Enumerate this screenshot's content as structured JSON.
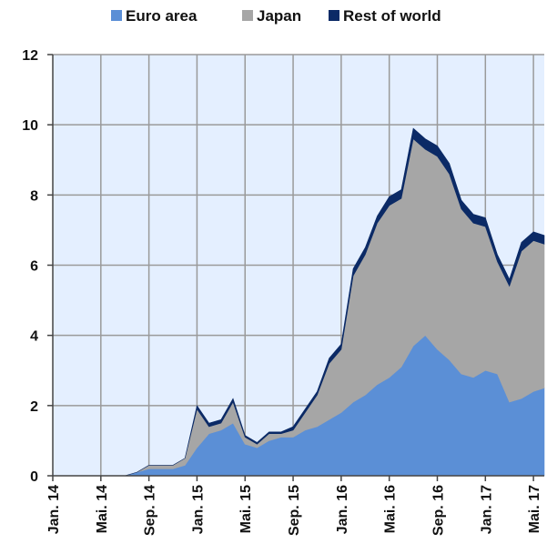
{
  "legend": {
    "items": [
      {
        "label": "Euro area",
        "color": "#5b8fd6"
      },
      {
        "label": "Japan",
        "color": "#a6a6a6"
      },
      {
        "label": "Rest of world",
        "color": "#0b2a66"
      }
    ]
  },
  "colors": {
    "plot_bg": "#e4efff",
    "grid": "#9a9a9a",
    "axis": "#444444"
  },
  "chart_data": {
    "type": "area",
    "stacked": true,
    "title": "",
    "xlabel": "",
    "ylabel": "",
    "ylim": [
      0,
      12
    ],
    "yticks": [
      0,
      2,
      4,
      6,
      8,
      10,
      12
    ],
    "ytick_labels": [
      "0",
      "2",
      "4",
      "6",
      "8",
      "10",
      "12"
    ],
    "xlim": [
      "2014-01",
      "2017-06"
    ],
    "xtick_labels": [
      "Jan. 14",
      "Mai. 14",
      "Sep. 14",
      "Jan. 15",
      "Mai. 15",
      "Sep. 15",
      "Jan. 16",
      "Mai. 16",
      "Sep. 16",
      "Jan. 17",
      "Mai. 17"
    ],
    "grid": true,
    "legend_position": "top",
    "x": [
      "2014-01",
      "2014-02",
      "2014-03",
      "2014-04",
      "2014-05",
      "2014-06",
      "2014-07",
      "2014-08",
      "2014-09",
      "2014-10",
      "2014-11",
      "2014-12",
      "2015-01",
      "2015-02",
      "2015-03",
      "2015-04",
      "2015-05",
      "2015-06",
      "2015-07",
      "2015-08",
      "2015-09",
      "2015-10",
      "2015-11",
      "2015-12",
      "2016-01",
      "2016-02",
      "2016-03",
      "2016-04",
      "2016-05",
      "2016-06",
      "2016-07",
      "2016-08",
      "2016-09",
      "2016-10",
      "2016-11",
      "2016-12",
      "2017-01",
      "2017-02",
      "2017-03",
      "2017-04",
      "2017-05",
      "2017-06"
    ],
    "series": [
      {
        "name": "Euro area",
        "values": [
          0,
          0,
          0,
          0,
          0,
          0,
          0,
          0.1,
          0.2,
          0.2,
          0.2,
          0.3,
          0.8,
          1.2,
          1.3,
          1.5,
          0.9,
          0.8,
          1.0,
          1.1,
          1.1,
          1.3,
          1.4,
          1.6,
          1.8,
          2.1,
          2.3,
          2.6,
          2.8,
          3.1,
          3.7,
          4.0,
          3.6,
          3.3,
          2.9,
          2.8,
          3.0,
          2.9,
          2.1,
          2.2,
          2.4,
          2.5
        ]
      },
      {
        "name": "Japan",
        "values": [
          0,
          0,
          0,
          0,
          0,
          0,
          0,
          0,
          0.1,
          0.1,
          0.1,
          0.2,
          1.1,
          0.2,
          0.2,
          0.6,
          0.2,
          0.1,
          0.2,
          0.1,
          0.2,
          0.5,
          0.9,
          1.6,
          1.8,
          3.6,
          4.0,
          4.6,
          4.9,
          4.8,
          5.9,
          5.3,
          5.5,
          5.3,
          4.7,
          4.4,
          4.1,
          3.2,
          3.3,
          4.2,
          4.3,
          4.1
        ]
      },
      {
        "name": "Rest of world",
        "values": [
          0,
          0,
          0,
          0,
          0,
          0,
          0,
          0,
          0,
          0,
          0,
          0,
          0.1,
          0.1,
          0.1,
          0.1,
          0.05,
          0.05,
          0.05,
          0.05,
          0.1,
          0.1,
          0.1,
          0.15,
          0.15,
          0.2,
          0.2,
          0.2,
          0.25,
          0.25,
          0.3,
          0.3,
          0.3,
          0.3,
          0.25,
          0.25,
          0.25,
          0.2,
          0.2,
          0.25,
          0.25,
          0.25
        ]
      }
    ]
  }
}
